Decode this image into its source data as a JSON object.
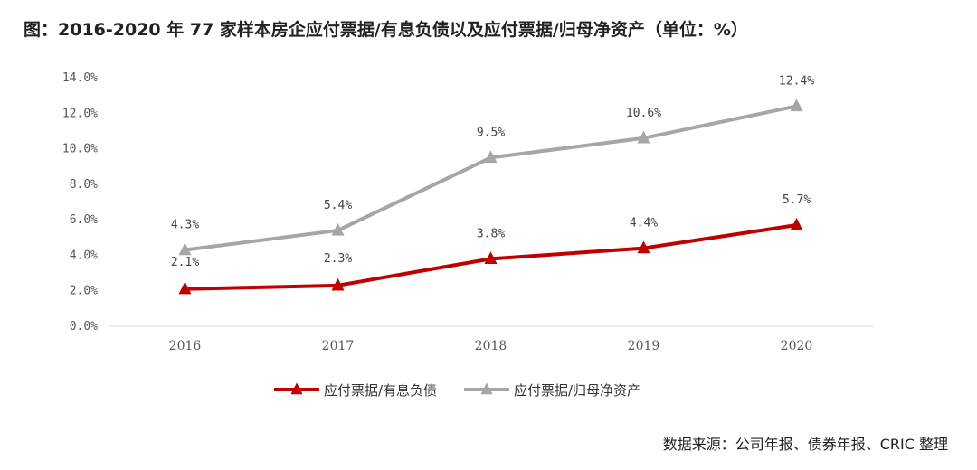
{
  "title": "图：2016-2020 年 77 家样本房企应付票据/有息负债以及应付票据/归母净资产（单位：%）",
  "source": "数据来源：公司年报、债券年报、CRIC 整理",
  "chart_data": {
    "type": "line",
    "x": [
      "2016",
      "2017",
      "2018",
      "2019",
      "2020"
    ],
    "yticks": [
      "0.0%",
      "2.0%",
      "4.0%",
      "6.0%",
      "8.0%",
      "10.0%",
      "12.0%",
      "14.0%"
    ],
    "ylim": [
      0,
      14
    ],
    "grid": false,
    "legend": "bottom",
    "series": [
      {
        "name": "应付票据/有息负债",
        "values": [
          2.1,
          2.3,
          3.8,
          4.4,
          5.7
        ],
        "labels": [
          "2.1%",
          "2.3%",
          "3.8%",
          "4.4%",
          "5.7%"
        ],
        "color": "#c00000",
        "marker": "triangle"
      },
      {
        "name": "应付票据/归母净资产",
        "values": [
          4.3,
          5.4,
          9.5,
          10.6,
          12.4
        ],
        "labels": [
          "4.3%",
          "5.4%",
          "9.5%",
          "10.6%",
          "12.4%"
        ],
        "color": "#a6a6a6",
        "marker": "triangle"
      }
    ]
  }
}
